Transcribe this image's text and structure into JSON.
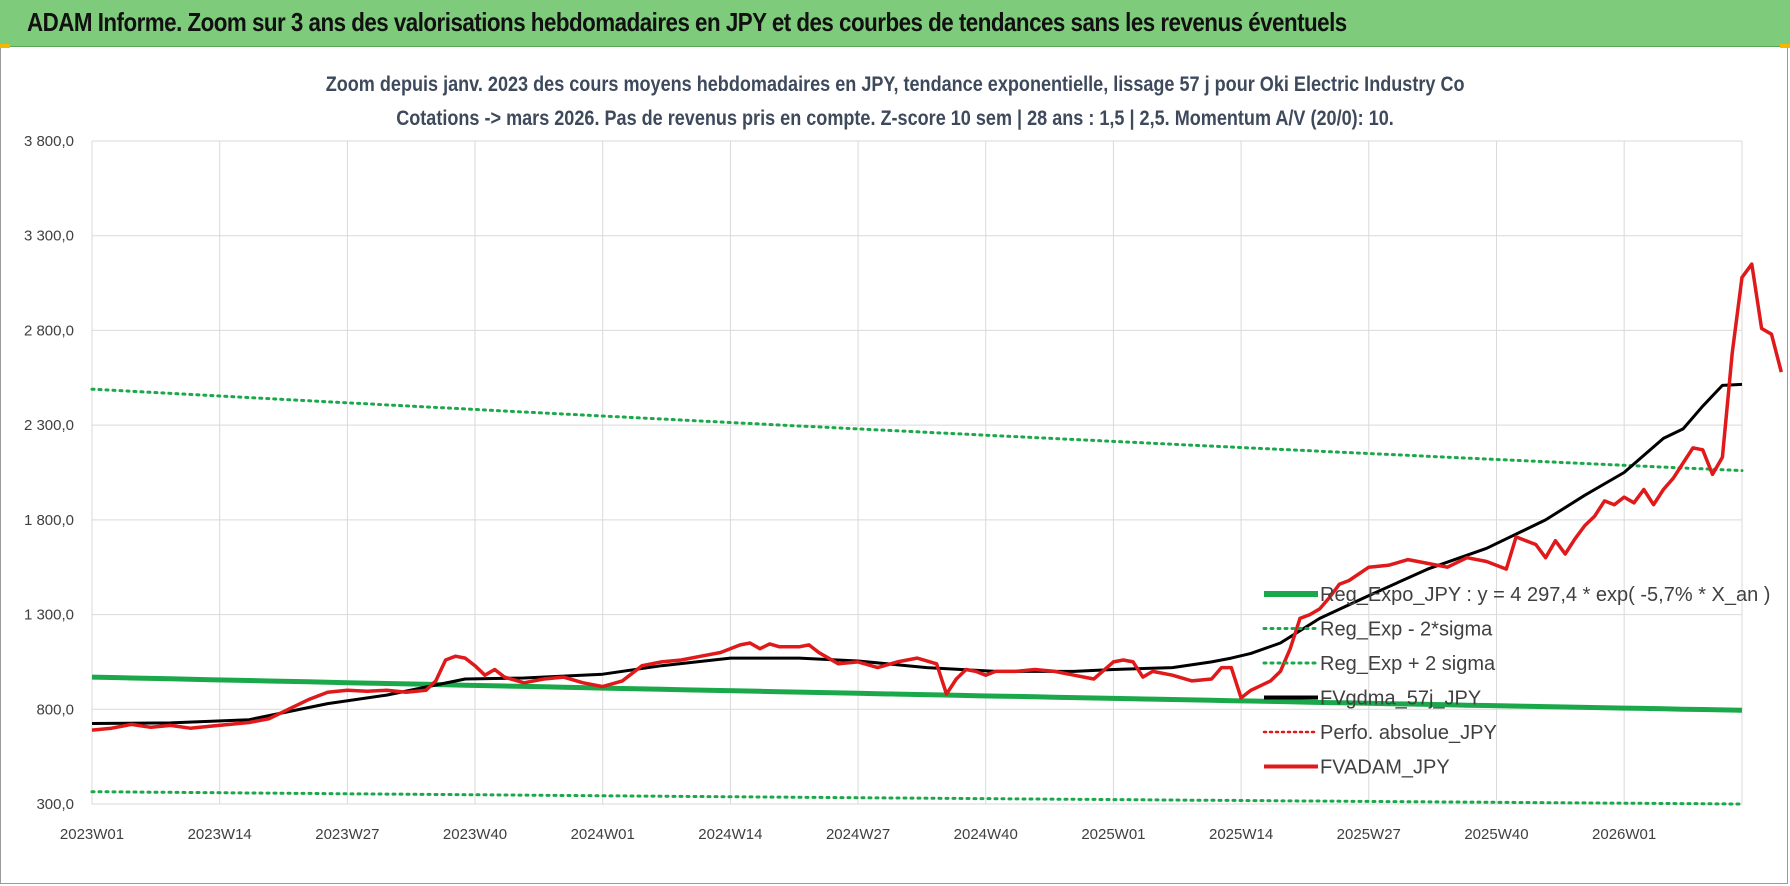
{
  "banner": {
    "title": "ADAM Informe. Zoom sur 3 ans des valorisations hebdomadaires en JPY et des courbes de tendances sans les revenus éventuels"
  },
  "colors": {
    "banner_bg": "#7fcb7c",
    "reg_expo": "#1ba84a",
    "band": "#1ba84a",
    "fvgdma": "#000000",
    "perfo": "#e0191b",
    "fvadam": "#e0191b",
    "grid": "#d9d9d9"
  },
  "chart_data": {
    "type": "line",
    "title": "Zoom depuis janv. 2023 des cours moyens hebdomadaires en JPY, tendance exponentielle, lissage 57 j pour Oki Electric Industry Co",
    "subtitle": "Cotations -> mars 2026. Pas de revenus pris en compte. Z-score 10 sem | 28 ans : 1,5 | 2,5. Momentum A/V (20/0): 10.",
    "y_range": [
      300,
      3800
    ],
    "y_ticks": [
      "300,0",
      "800,0",
      "1 300,0",
      "1 800,0",
      "2 300,0",
      "2 800,0",
      "3 300,0",
      "3 800,0"
    ],
    "y_tick_values": [
      300,
      800,
      1300,
      1800,
      2300,
      2800,
      3300,
      3800
    ],
    "x_ticks": [
      "2023W01",
      "2023W14",
      "2023W27",
      "2023W40",
      "2024W01",
      "2024W14",
      "2024W27",
      "2024W40",
      "2025W01",
      "2025W14",
      "2025W27",
      "2025W40",
      "2026W01"
    ],
    "x_tick_week_index": [
      0,
      13,
      26,
      39,
      52,
      65,
      78,
      91,
      104,
      117,
      130,
      143,
      156
    ],
    "week_count": 168,
    "grid": true,
    "legend_position": "bottom-right",
    "series": [
      {
        "name": "Reg_Expo_JPY : y = 4 297,4 * exp( -5,7% *  X_an )",
        "key": "reg",
        "style": "thick-solid-green",
        "start": 970,
        "end": 795
      },
      {
        "name": "Reg_Exp - 2*sigma",
        "key": "low",
        "style": "dotted-green",
        "start": 365,
        "end": 300
      },
      {
        "name": "Reg_Exp + 2 sigma",
        "key": "high",
        "style": "dotted-green",
        "start": 2490,
        "end": 2060
      },
      {
        "name": "FVgdma_57j_JPY",
        "key": "ma",
        "style": "solid-black",
        "points": [
          [
            0,
            725
          ],
          [
            8,
            728
          ],
          [
            16,
            745
          ],
          [
            24,
            830
          ],
          [
            30,
            875
          ],
          [
            38,
            960
          ],
          [
            44,
            965
          ],
          [
            52,
            985
          ],
          [
            58,
            1030
          ],
          [
            65,
            1070
          ],
          [
            72,
            1070
          ],
          [
            78,
            1055
          ],
          [
            85,
            1020
          ],
          [
            92,
            1000
          ],
          [
            100,
            1000
          ],
          [
            104,
            1010
          ],
          [
            110,
            1020
          ],
          [
            114,
            1050
          ],
          [
            116,
            1070
          ],
          [
            118,
            1095
          ],
          [
            121,
            1150
          ],
          [
            125,
            1280
          ],
          [
            130,
            1400
          ],
          [
            136,
            1540
          ],
          [
            142,
            1650
          ],
          [
            148,
            1800
          ],
          [
            152,
            1930
          ],
          [
            156,
            2050
          ],
          [
            160,
            2230
          ],
          [
            162,
            2280
          ],
          [
            164,
            2400
          ],
          [
            166,
            2510
          ],
          [
            168,
            2515
          ]
        ]
      },
      {
        "name": "Perfo. absolue_JPY",
        "key": "perfo",
        "style": "dotted-red",
        "points": []
      },
      {
        "name": "FVADAM_JPY",
        "key": "fv",
        "style": "solid-red",
        "points": [
          [
            0,
            690
          ],
          [
            2,
            700
          ],
          [
            4,
            720
          ],
          [
            6,
            705
          ],
          [
            8,
            715
          ],
          [
            10,
            700
          ],
          [
            12,
            710
          ],
          [
            14,
            720
          ],
          [
            16,
            730
          ],
          [
            18,
            750
          ],
          [
            20,
            800
          ],
          [
            22,
            850
          ],
          [
            24,
            890
          ],
          [
            26,
            900
          ],
          [
            28,
            895
          ],
          [
            30,
            900
          ],
          [
            32,
            890
          ],
          [
            34,
            900
          ],
          [
            35,
            950
          ],
          [
            36,
            1060
          ],
          [
            37,
            1080
          ],
          [
            38,
            1070
          ],
          [
            39,
            1030
          ],
          [
            40,
            980
          ],
          [
            41,
            1010
          ],
          [
            42,
            970
          ],
          [
            44,
            940
          ],
          [
            46,
            960
          ],
          [
            48,
            970
          ],
          [
            50,
            940
          ],
          [
            52,
            920
          ],
          [
            54,
            950
          ],
          [
            56,
            1030
          ],
          [
            58,
            1050
          ],
          [
            60,
            1060
          ],
          [
            62,
            1080
          ],
          [
            64,
            1100
          ],
          [
            66,
            1140
          ],
          [
            67,
            1150
          ],
          [
            68,
            1120
          ],
          [
            69,
            1145
          ],
          [
            70,
            1130
          ],
          [
            72,
            1130
          ],
          [
            73,
            1140
          ],
          [
            74,
            1100
          ],
          [
            76,
            1040
          ],
          [
            78,
            1050
          ],
          [
            80,
            1020
          ],
          [
            82,
            1050
          ],
          [
            84,
            1070
          ],
          [
            86,
            1040
          ],
          [
            87,
            880
          ],
          [
            88,
            960
          ],
          [
            89,
            1010
          ],
          [
            90,
            1000
          ],
          [
            91,
            980
          ],
          [
            92,
            1000
          ],
          [
            94,
            1000
          ],
          [
            96,
            1010
          ],
          [
            98,
            1000
          ],
          [
            100,
            980
          ],
          [
            102,
            960
          ],
          [
            104,
            1050
          ],
          [
            105,
            1060
          ],
          [
            106,
            1050
          ],
          [
            107,
            970
          ],
          [
            108,
            1000
          ],
          [
            110,
            980
          ],
          [
            112,
            950
          ],
          [
            114,
            960
          ],
          [
            115,
            1020
          ],
          [
            116,
            1020
          ],
          [
            117,
            860
          ],
          [
            118,
            900
          ],
          [
            120,
            950
          ],
          [
            121,
            1000
          ],
          [
            122,
            1120
          ],
          [
            123,
            1280
          ],
          [
            124,
            1300
          ],
          [
            125,
            1330
          ],
          [
            126,
            1390
          ],
          [
            127,
            1460
          ],
          [
            128,
            1480
          ],
          [
            130,
            1550
          ],
          [
            132,
            1560
          ],
          [
            134,
            1590
          ],
          [
            136,
            1570
          ],
          [
            138,
            1550
          ],
          [
            140,
            1600
          ],
          [
            142,
            1580
          ],
          [
            144,
            1540
          ],
          [
            145,
            1710
          ],
          [
            146,
            1690
          ],
          [
            147,
            1670
          ],
          [
            148,
            1600
          ],
          [
            149,
            1690
          ],
          [
            150,
            1620
          ],
          [
            151,
            1700
          ],
          [
            152,
            1770
          ],
          [
            153,
            1820
          ],
          [
            154,
            1900
          ],
          [
            155,
            1880
          ],
          [
            156,
            1920
          ],
          [
            157,
            1890
          ],
          [
            158,
            1960
          ],
          [
            159,
            1880
          ],
          [
            160,
            1960
          ],
          [
            161,
            2020
          ],
          [
            162,
            2100
          ],
          [
            163,
            2180
          ],
          [
            164,
            2170
          ],
          [
            165,
            2040
          ],
          [
            166,
            2130
          ],
          [
            167,
            2680
          ],
          [
            168,
            3080
          ],
          [
            169,
            3150
          ],
          [
            170,
            2810
          ],
          [
            171,
            2780
          ],
          [
            172,
            2580
          ]
        ]
      }
    ]
  }
}
